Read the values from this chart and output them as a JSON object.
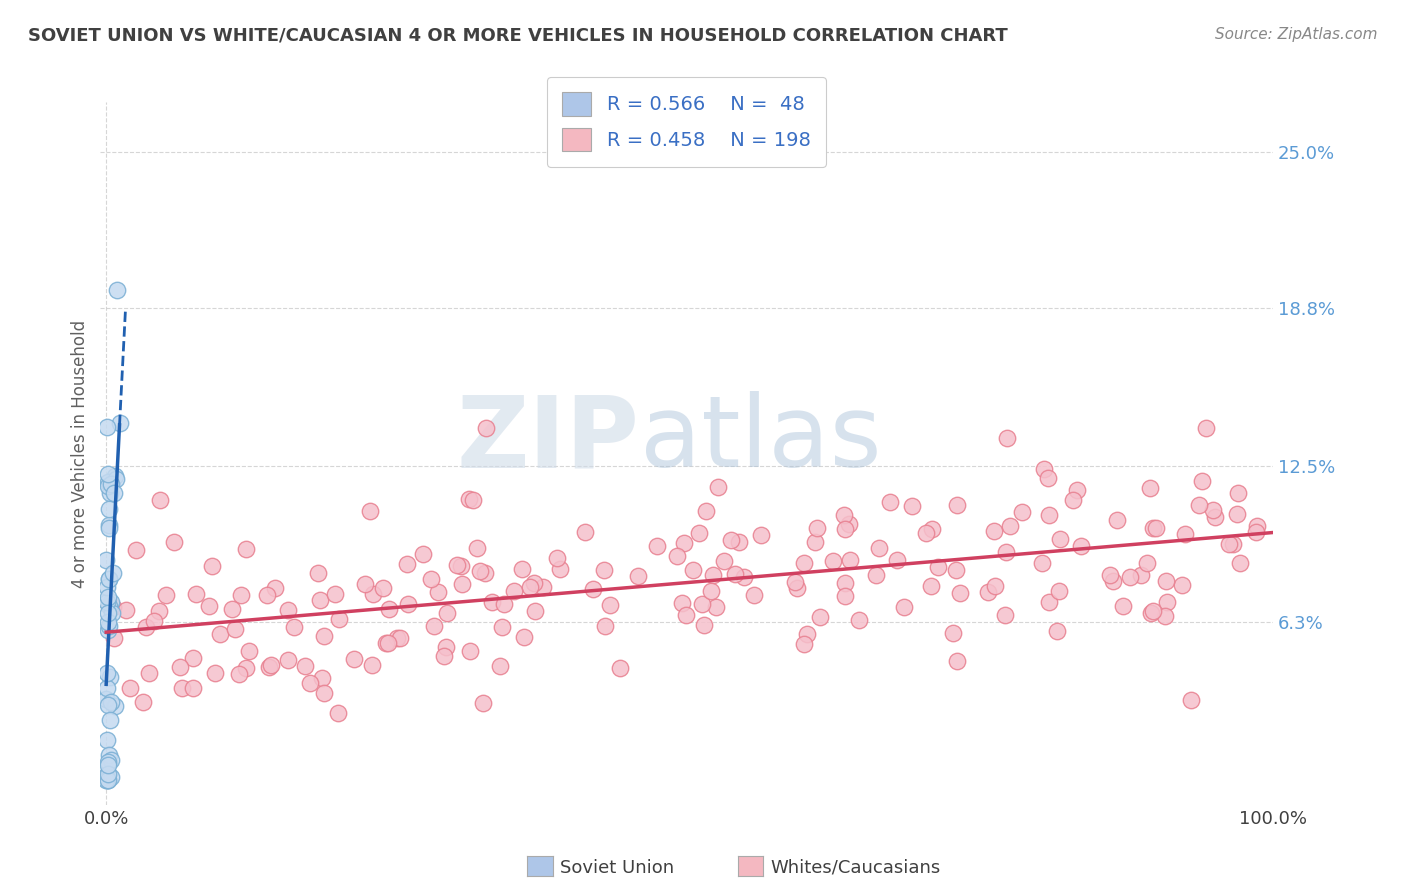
{
  "title": "SOVIET UNION VS WHITE/CAUCASIAN 4 OR MORE VEHICLES IN HOUSEHOLD CORRELATION CHART",
  "source_text": "Source: ZipAtlas.com",
  "ylabel": "4 or more Vehicles in Household",
  "xlabel": "",
  "watermark_zip": "ZIP",
  "watermark_atlas": "atlas",
  "xlim": [
    -0.5,
    100.0
  ],
  "ylim": [
    -1.0,
    27.0
  ],
  "ytick_labels": [
    "6.3%",
    "12.5%",
    "18.8%",
    "25.0%"
  ],
  "ytick_values": [
    6.3,
    12.5,
    18.8,
    25.0
  ],
  "xtick_labels": [
    "0.0%",
    "100.0%"
  ],
  "xtick_values": [
    0.0,
    100.0
  ],
  "legend_series1_color": "#aec6e8",
  "legend_series2_color": "#f4b8c1",
  "legend_series1_R": "0.566",
  "legend_series1_N": "48",
  "legend_series2_R": "0.458",
  "legend_series2_N": "198",
  "series1_face_color": "#c5daf0",
  "series1_edge_color": "#7aafd4",
  "series2_face_color": "#f5c0cc",
  "series2_edge_color": "#e88090",
  "series1_line_color": "#2060b0",
  "series2_line_color": "#d04060",
  "background_color": "#ffffff",
  "grid_color": "#cccccc",
  "title_color": "#404040",
  "ylabel_color": "#606060",
  "right_axis_label_color": "#5b9bd5",
  "label_color": "#404040",
  "source_color": "#888888",
  "n1": 48,
  "n2": 198
}
